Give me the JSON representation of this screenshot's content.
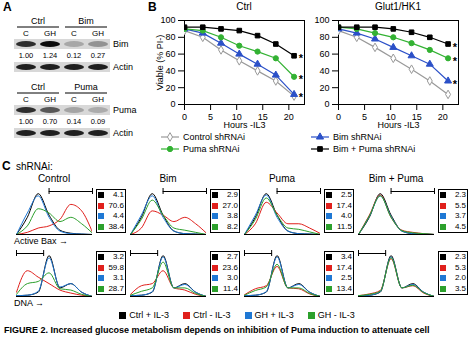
{
  "panel_a": {
    "label": "A",
    "blots": [
      {
        "headers": [
          "Ctrl",
          "Bim"
        ],
        "lanes": [
          "C",
          "GH",
          "C",
          "GH"
        ],
        "target": "Bim",
        "loading": "Actin",
        "quantification": [
          "1.00",
          "1.24",
          "0.12",
          "0.27"
        ]
      },
      {
        "headers": [
          "Ctrl",
          "Puma"
        ],
        "lanes": [
          "C",
          "GH",
          "C",
          "GH"
        ],
        "target": "Puma",
        "loading": "Actin",
        "quantification": [
          "1.00",
          "0.70",
          "0.14",
          "0.09"
        ]
      }
    ]
  },
  "panel_b": {
    "label": "B"
  },
  "chart_data": [
    {
      "type": "line",
      "title": "Ctrl",
      "x_label": "Hours -IL3",
      "y_label": "Viable (% PI-)",
      "x": [
        0,
        3.5,
        7,
        10.5,
        14,
        17.5,
        21
      ],
      "xlim": [
        0,
        23
      ],
      "xticks": [
        0,
        5,
        10,
        15,
        20
      ],
      "ylim": [
        0,
        100
      ],
      "yticks": [
        0,
        20,
        40,
        60,
        80,
        100
      ],
      "legend": "bottom",
      "series": [
        {
          "name": "Control shRNAi",
          "color": "#999999",
          "marker": "open-diamond",
          "values": [
            88,
            80,
            65,
            52,
            40,
            28,
            10
          ]
        },
        {
          "name": "Bim shRNAi",
          "color": "#2b50c8",
          "marker": "triangle",
          "values": [
            90,
            85,
            73,
            60,
            48,
            35,
            12
          ]
        },
        {
          "name": "Puma shRNAi",
          "color": "#33b233",
          "marker": "circle",
          "values": [
            90,
            88,
            80,
            70,
            63,
            55,
            33
          ]
        },
        {
          "name": "Bim + Puma shRNAi",
          "color": "#000000",
          "marker": "square",
          "values": [
            92,
            92,
            90,
            88,
            82,
            72,
            58
          ]
        }
      ],
      "annotations": [
        {
          "text": "*",
          "x": 22.3,
          "y": 12
        },
        {
          "text": "*",
          "x": 22.3,
          "y": 33
        },
        {
          "text": "*",
          "x": 22.3,
          "y": 58
        }
      ]
    },
    {
      "type": "line",
      "title": "Glut1/HK1",
      "x_label": "Hours -IL3",
      "x": [
        0,
        3.5,
        7,
        10.5,
        14,
        17.5,
        21
      ],
      "xlim": [
        0,
        23
      ],
      "xticks": [
        0,
        5,
        10,
        15,
        20
      ],
      "ylim": [
        0,
        100
      ],
      "yticks": [
        0,
        20,
        40,
        60,
        80,
        100
      ],
      "series": [
        {
          "name": "Control shRNAi",
          "color": "#999999",
          "marker": "open-diamond",
          "values": [
            88,
            80,
            68,
            55,
            42,
            28,
            12
          ]
        },
        {
          "name": "Bim shRNAi",
          "color": "#2b50c8",
          "marker": "triangle",
          "values": [
            90,
            85,
            78,
            68,
            58,
            48,
            28
          ]
        },
        {
          "name": "Puma shRNAi",
          "color": "#33b233",
          "marker": "circle",
          "values": [
            92,
            90,
            85,
            80,
            73,
            65,
            55
          ]
        },
        {
          "name": "Bim + Puma shRNAi",
          "color": "#000000",
          "marker": "square",
          "values": [
            92,
            92,
            92,
            90,
            86,
            80,
            72
          ]
        }
      ],
      "annotations": [
        {
          "text": "*",
          "x": 22.3,
          "y": 28
        },
        {
          "text": "*",
          "x": 22.3,
          "y": 55
        },
        {
          "text": "*",
          "x": 22.3,
          "y": 72
        }
      ]
    }
  ],
  "panel_c": {
    "label": "C",
    "heading": "shRNAi:",
    "columns": [
      "Control",
      "Bim",
      "Puma",
      "Bim + Puma"
    ],
    "x": [
      0,
      1,
      2,
      3,
      4,
      5,
      6,
      7
    ],
    "xlim": [
      0,
      7
    ],
    "ylim": [
      0,
      100
    ],
    "tick_labels": false,
    "conditions": [
      {
        "name": "Ctrl + IL-3",
        "color": "#000000"
      },
      {
        "name": "Ctrl - IL-3",
        "color": "#e0201c"
      },
      {
        "name": "GH + IL-3",
        "color": "#1f78d4"
      },
      {
        "name": "GH - IL-3",
        "color": "#2ca02c"
      }
    ],
    "rows": [
      {
        "axis_label": "Active Bax →",
        "gate": [
          3,
          7
        ],
        "panels": [
          {
            "percentages": [
              "4.1",
              "70.6",
              "4.4",
              "38.4"
            ],
            "curves": [
              [
                0,
                40,
                95,
                45,
                10,
                3,
                1,
                0
              ],
              [
                0,
                5,
                15,
                20,
                35,
                70,
                55,
                5
              ],
              [
                0,
                50,
                90,
                40,
                8,
                2,
                1,
                0
              ],
              [
                0,
                20,
                60,
                50,
                30,
                40,
                25,
                3
              ]
            ]
          },
          {
            "percentages": [
              "2.9",
              "27.0",
              "3.8",
              "8.2"
            ],
            "curves": [
              [
                0,
                40,
                95,
                45,
                8,
                2,
                1,
                0
              ],
              [
                0,
                15,
                55,
                45,
                30,
                40,
                25,
                3
              ],
              [
                0,
                45,
                90,
                40,
                8,
                2,
                1,
                0
              ],
              [
                0,
                35,
                80,
                45,
                15,
                10,
                5,
                0
              ]
            ]
          },
          {
            "percentages": [
              "2.5",
              "17.4",
              "4.0",
              "11.5"
            ],
            "curves": [
              [
                0,
                40,
                95,
                45,
                8,
                2,
                1,
                0
              ],
              [
                0,
                25,
                75,
                50,
                25,
                25,
                15,
                2
              ],
              [
                0,
                45,
                92,
                40,
                8,
                2,
                1,
                0
              ],
              [
                0,
                35,
                85,
                45,
                15,
                12,
                6,
                0
              ]
            ]
          },
          {
            "percentages": [
              "2.3",
              "5.5",
              "3.7",
              "4.5"
            ],
            "curves": [
              [
                0,
                40,
                95,
                45,
                8,
                2,
                1,
                0
              ],
              [
                0,
                45,
                92,
                40,
                10,
                5,
                2,
                0
              ],
              [
                0,
                42,
                90,
                42,
                8,
                2,
                1,
                0
              ],
              [
                0,
                43,
                90,
                40,
                9,
                4,
                2,
                0
              ]
            ]
          }
        ]
      },
      {
        "axis_label": "DNA →",
        "gate": [
          0,
          2.5
        ],
        "panels": [
          {
            "percentages": [
              "3.2",
              "59.8",
              "3.1",
              "28.7"
            ],
            "curves": [
              [
                2,
                3,
                10,
                95,
                20,
                30,
                10,
                0
              ],
              [
                10,
                60,
                45,
                30,
                15,
                8,
                3,
                0
              ],
              [
                2,
                3,
                12,
                90,
                22,
                30,
                10,
                0
              ],
              [
                5,
                30,
                35,
                55,
                18,
                15,
                5,
                0
              ]
            ]
          },
          {
            "percentages": [
              "2.7",
              "23.6",
              "3.0",
              "11.4"
            ],
            "curves": [
              [
                2,
                3,
                10,
                95,
                20,
                30,
                10,
                0
              ],
              [
                5,
                25,
                30,
                60,
                20,
                15,
                5,
                0
              ],
              [
                2,
                3,
                11,
                92,
                20,
                28,
                10,
                0
              ],
              [
                3,
                12,
                20,
                80,
                20,
                20,
                7,
                0
              ]
            ]
          },
          {
            "percentages": [
              "3.4",
              "17.4",
              "2.5",
              "13.4"
            ],
            "curves": [
              [
                2,
                3,
                10,
                95,
                20,
                30,
                10,
                0
              ],
              [
                4,
                18,
                25,
                70,
                20,
                18,
                6,
                0
              ],
              [
                2,
                3,
                11,
                92,
                20,
                28,
                10,
                0
              ],
              [
                3,
                14,
                22,
                75,
                20,
                20,
                7,
                0
              ]
            ]
          },
          {
            "percentages": [
              "2.3",
              "5.3",
              "2.0",
              "3.5"
            ],
            "curves": [
              [
                2,
                3,
                10,
                95,
                20,
                30,
                10,
                0
              ],
              [
                2,
                6,
                14,
                88,
                20,
                25,
                8,
                0
              ],
              [
                2,
                3,
                11,
                92,
                20,
                28,
                10,
                0
              ],
              [
                2,
                5,
                12,
                90,
                20,
                26,
                9,
                0
              ]
            ]
          }
        ]
      }
    ]
  },
  "caption": "FIGURE 2. Increased glucose metabolism depends on inhibition of Puma induction to attenuate cell"
}
